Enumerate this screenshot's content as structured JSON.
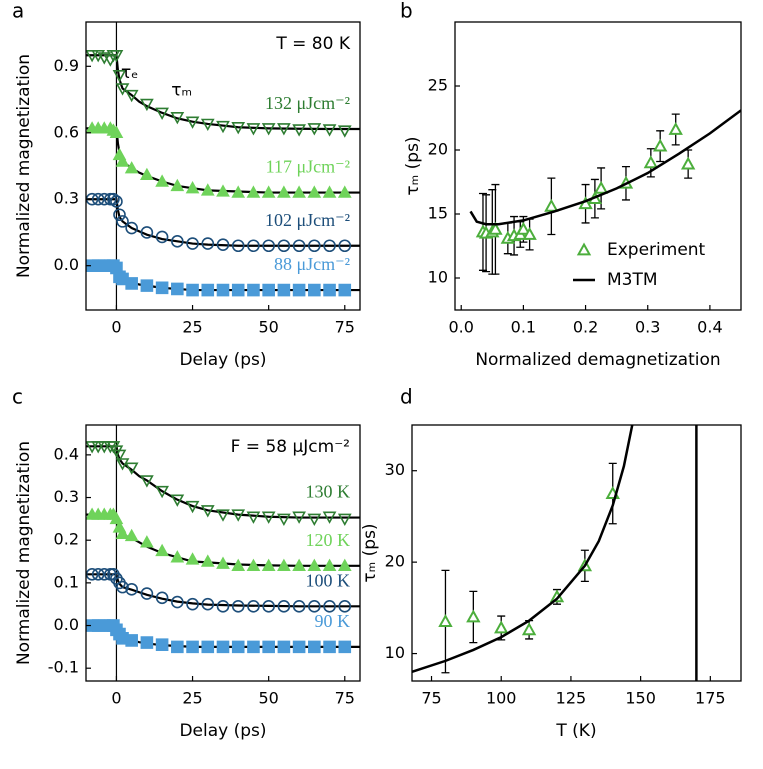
{
  "chart_data": [
    {
      "type": "line",
      "label": "a",
      "xlabel": "Delay (ps)",
      "ylabel": "Normalized magnetization",
      "xlim": [
        -10,
        80
      ],
      "xticks": [
        0,
        25,
        50,
        75
      ],
      "ylim": [
        -0.2,
        1.1
      ],
      "yticks": [
        {
          "value": 0,
          "label": "0.0"
        },
        0.3,
        0.6,
        0.9
      ],
      "vline": 0,
      "annotations": [
        "T = 80 K",
        "τₑ",
        "τₘ"
      ],
      "x": [
        -8,
        -6,
        -4,
        -2,
        -1,
        0,
        1,
        2,
        5,
        10,
        15,
        20,
        25,
        30,
        35,
        40,
        45,
        50,
        55,
        60,
        65,
        70,
        75
      ],
      "series": [
        {
          "name": "132 μJcm⁻²",
          "color": "#2e7d32",
          "marker": "triangle-down",
          "filled": false,
          "values": [
            0.95,
            0.95,
            0.94,
            0.93,
            0.95,
            0.95,
            0.86,
            0.8,
            0.77,
            0.73,
            0.69,
            0.67,
            0.65,
            0.64,
            0.63,
            0.625,
            0.62,
            0.62,
            0.62,
            0.615,
            0.62,
            0.615,
            0.61
          ]
        },
        {
          "name": "117 μJcm⁻²",
          "color": "#6fd35a",
          "marker": "triangle-up",
          "filled": true,
          "values": [
            0.62,
            0.62,
            0.62,
            0.62,
            0.61,
            0.6,
            0.5,
            0.47,
            0.44,
            0.41,
            0.38,
            0.36,
            0.35,
            0.34,
            0.335,
            0.33,
            0.33,
            0.33,
            0.33,
            0.33,
            0.33,
            0.33,
            0.33
          ]
        },
        {
          "name": "102 μJcm⁻²",
          "color": "#1d4e7a",
          "marker": "circle",
          "filled": false,
          "values": [
            0.3,
            0.3,
            0.3,
            0.3,
            0.3,
            0.29,
            0.23,
            0.2,
            0.17,
            0.15,
            0.13,
            0.11,
            0.1,
            0.1,
            0.095,
            0.09,
            0.09,
            0.09,
            0.09,
            0.09,
            0.09,
            0.09,
            0.09
          ]
        },
        {
          "name": "88 μJcm⁻²",
          "color": "#4a9ad8",
          "marker": "square",
          "filled": true,
          "values": [
            0,
            0,
            0,
            0,
            0,
            -0.01,
            -0.05,
            -0.06,
            -0.08,
            -0.09,
            -0.1,
            -0.105,
            -0.11,
            -0.11,
            -0.11,
            -0.11,
            -0.11,
            -0.11,
            -0.11,
            -0.11,
            -0.11,
            -0.11,
            -0.11
          ]
        }
      ],
      "fit_x": [
        -10,
        0,
        0.5,
        1,
        2,
        3,
        5,
        7.5,
        10,
        15,
        20,
        25,
        30,
        40,
        50,
        60,
        70,
        80
      ],
      "fits": [
        {
          "color": "#000000",
          "values": [
            0.95,
            0.95,
            0.88,
            0.84,
            0.8,
            0.79,
            0.77,
            0.74,
            0.72,
            0.69,
            0.665,
            0.65,
            0.64,
            0.625,
            0.62,
            0.618,
            0.617,
            0.617
          ]
        },
        {
          "color": "#000000",
          "values": [
            0.62,
            0.62,
            0.55,
            0.51,
            0.47,
            0.46,
            0.44,
            0.42,
            0.405,
            0.38,
            0.36,
            0.35,
            0.34,
            0.335,
            0.33,
            0.33,
            0.33,
            0.33
          ]
        },
        {
          "color": "#000000",
          "values": [
            0.3,
            0.3,
            0.25,
            0.22,
            0.2,
            0.19,
            0.17,
            0.155,
            0.14,
            0.12,
            0.11,
            0.1,
            0.095,
            0.09,
            0.09,
            0.09,
            0.09,
            0.09
          ]
        },
        {
          "color": "#000000",
          "values": [
            0,
            0,
            -0.03,
            -0.05,
            -0.06,
            -0.065,
            -0.075,
            -0.085,
            -0.09,
            -0.1,
            -0.105,
            -0.11,
            -0.11,
            -0.11,
            -0.11,
            -0.11,
            -0.11,
            -0.11
          ]
        }
      ]
    },
    {
      "type": "scatter",
      "label": "b",
      "xlabel": "Normalized demagnetization",
      "ylabel": "τₘ (ps)",
      "xlim": [
        -0.01,
        0.45
      ],
      "xticks": [
        {
          "value": 0,
          "label": "0.0"
        },
        0.1,
        0.2,
        0.3,
        0.4
      ],
      "ylim": [
        7.5,
        30
      ],
      "yticks": [
        10,
        15,
        20,
        25
      ],
      "legend": "lower right",
      "series": [
        {
          "name": "Experiment",
          "color": "#4cae3c",
          "style": "markers",
          "x": [
            0.035,
            0.04,
            0.05,
            0.055,
            0.075,
            0.085,
            0.095,
            0.1,
            0.11,
            0.145,
            0.2,
            0.215,
            0.225,
            0.265,
            0.305,
            0.32,
            0.345,
            0.365
          ],
          "values": [
            13.6,
            13.5,
            13.6,
            13.8,
            13.1,
            13.3,
            13.4,
            13.8,
            13.4,
            15.6,
            15.8,
            16.2,
            17.0,
            17.4,
            19.0,
            20.3,
            21.6,
            18.9
          ],
          "errors": [
            3,
            3,
            3.3,
            3.5,
            1.2,
            1.5,
            1.0,
            1,
            1.2,
            2.2,
            1.5,
            1.5,
            1.6,
            1.3,
            1.1,
            1.2,
            1.2,
            1.1
          ]
        },
        {
          "name": "M3TM",
          "color": "#000000",
          "style": "line",
          "x": [
            0.015,
            0.025,
            0.04,
            0.06,
            0.1,
            0.15,
            0.2,
            0.25,
            0.3,
            0.35,
            0.4,
            0.45
          ],
          "values": [
            15.2,
            14.4,
            14.2,
            14.2,
            14.5,
            15.2,
            16.0,
            17.0,
            18.2,
            19.7,
            21.3,
            23.1
          ]
        }
      ]
    },
    {
      "type": "line",
      "label": "c",
      "xlabel": "Delay (ps)",
      "ylabel": "Normalized magnetization",
      "xlim": [
        -10,
        80
      ],
      "xticks": [
        0,
        25,
        50,
        75
      ],
      "ylim": [
        -0.13,
        0.47
      ],
      "yticks": [
        -0.1,
        {
          "value": 0,
          "label": "0.0"
        },
        0.1,
        0.2,
        0.3,
        0.4
      ],
      "vline": 0,
      "annotations": [
        "F = 58 μJcm⁻²"
      ],
      "x": [
        -8,
        -6,
        -4,
        -2,
        -1,
        0,
        1,
        2,
        5,
        10,
        15,
        20,
        25,
        30,
        35,
        40,
        45,
        50,
        55,
        60,
        65,
        70,
        75
      ],
      "series": [
        {
          "name": "130 K",
          "color": "#2e7d32",
          "marker": "triangle-down",
          "filled": false,
          "values": [
            0.42,
            0.42,
            0.42,
            0.42,
            0.42,
            0.41,
            0.4,
            0.38,
            0.37,
            0.34,
            0.315,
            0.295,
            0.28,
            0.27,
            0.26,
            0.26,
            0.255,
            0.255,
            0.25,
            0.255,
            0.25,
            0.255,
            0.25
          ]
        },
        {
          "name": "120 K",
          "color": "#6fd35a",
          "marker": "triangle-up",
          "filled": true,
          "values": [
            0.26,
            0.26,
            0.26,
            0.26,
            0.26,
            0.25,
            0.23,
            0.215,
            0.21,
            0.195,
            0.175,
            0.16,
            0.155,
            0.15,
            0.145,
            0.14,
            0.14,
            0.14,
            0.14,
            0.14,
            0.14,
            0.14,
            0.14
          ]
        },
        {
          "name": "100 K",
          "color": "#1d4e7a",
          "marker": "circle",
          "filled": false,
          "values": [
            0.12,
            0.12,
            0.12,
            0.12,
            0.12,
            0.11,
            0.1,
            0.09,
            0.085,
            0.075,
            0.065,
            0.055,
            0.05,
            0.05,
            0.045,
            0.045,
            0.045,
            0.045,
            0.045,
            0.045,
            0.045,
            0.045,
            0.045
          ]
        },
        {
          "name": "90 K",
          "color": "#4a9ad8",
          "marker": "square",
          "filled": true,
          "values": [
            0,
            0,
            0,
            0,
            0,
            -0.01,
            -0.02,
            -0.03,
            -0.035,
            -0.04,
            -0.045,
            -0.05,
            -0.05,
            -0.05,
            -0.05,
            -0.05,
            -0.05,
            -0.05,
            -0.05,
            -0.05,
            -0.05,
            -0.05,
            -0.05
          ]
        }
      ],
      "fit_x": [
        -10,
        0,
        0.5,
        1,
        2,
        3,
        5,
        7.5,
        10,
        15,
        20,
        25,
        30,
        40,
        50,
        60,
        70,
        80
      ],
      "fits": [
        {
          "color": "#000000",
          "values": [
            0.42,
            0.42,
            0.4,
            0.39,
            0.38,
            0.375,
            0.365,
            0.35,
            0.34,
            0.315,
            0.295,
            0.28,
            0.27,
            0.26,
            0.255,
            0.253,
            0.253,
            0.253
          ]
        },
        {
          "color": "#000000",
          "values": [
            0.26,
            0.26,
            0.235,
            0.225,
            0.215,
            0.21,
            0.205,
            0.195,
            0.185,
            0.17,
            0.16,
            0.15,
            0.148,
            0.143,
            0.141,
            0.14,
            0.14,
            0.14
          ]
        },
        {
          "color": "#000000",
          "values": [
            0.12,
            0.12,
            0.105,
            0.098,
            0.09,
            0.088,
            0.084,
            0.078,
            0.072,
            0.063,
            0.056,
            0.052,
            0.049,
            0.047,
            0.046,
            0.045,
            0.045,
            0.045
          ]
        },
        {
          "color": "#000000",
          "values": [
            0,
            0,
            -0.015,
            -0.022,
            -0.03,
            -0.032,
            -0.035,
            -0.039,
            -0.042,
            -0.046,
            -0.048,
            -0.05,
            -0.05,
            -0.05,
            -0.05,
            -0.05,
            -0.05,
            -0.05
          ]
        }
      ]
    },
    {
      "type": "scatter",
      "label": "d",
      "xlabel": "T (K)",
      "ylabel": "τₘ (ps)",
      "xlim": [
        68,
        186
      ],
      "xticks": [
        75,
        100,
        125,
        150,
        175
      ],
      "ylim": [
        7,
        35
      ],
      "yticks": [
        10,
        20,
        30
      ],
      "vline": 170,
      "series": [
        {
          "color": "#4cae3c",
          "style": "markers",
          "x": [
            80,
            90,
            100,
            110,
            120,
            130,
            140
          ],
          "values": [
            13.5,
            14,
            12.8,
            12.6,
            16.2,
            19.6,
            27.5
          ],
          "errors": [
            5.6,
            2.8,
            1.3,
            1,
            0.8,
            1.7,
            3.3
          ]
        },
        {
          "color": "#000000",
          "style": "line",
          "x": [
            68,
            80,
            90,
            100,
            110,
            120,
            130,
            135,
            140,
            144,
            147
          ],
          "values": [
            8.0,
            9.2,
            10.4,
            11.8,
            13.6,
            16,
            19.6,
            22.3,
            26.2,
            30.5,
            35
          ]
        }
      ]
    }
  ]
}
